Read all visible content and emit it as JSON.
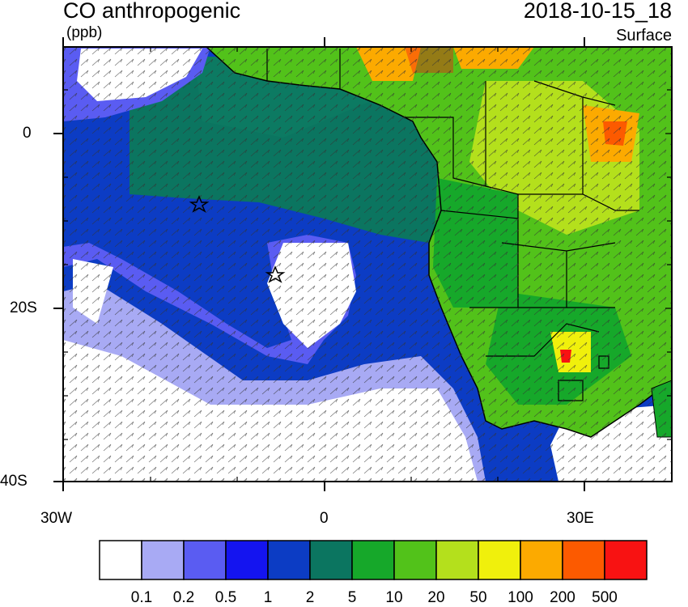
{
  "header": {
    "title": "CO anthropogenic",
    "units": "(ppb)",
    "timestamp": "2018-10-15_18",
    "level": "Surface"
  },
  "axes": {
    "lat_labels": [
      "0",
      "20S",
      "40S"
    ],
    "lon_labels": [
      "30W",
      "0",
      "30E"
    ]
  },
  "colorbar": {
    "colors": [
      "#ffffff",
      "#a8aaf4",
      "#5a5cf2",
      "#1414f0",
      "#0c3cc4",
      "#0b7560",
      "#16a82a",
      "#52c21a",
      "#b4e01c",
      "#f0f00c",
      "#fcaa00",
      "#fc5a00",
      "#f81212"
    ],
    "labels": [
      "0.1",
      "0.2",
      "0.5",
      "1",
      "2",
      "5",
      "10",
      "20",
      "50",
      "100",
      "200",
      "500"
    ]
  },
  "map": {
    "region": "West/Southern Africa and South Atlantic",
    "markers": [
      "star-marker",
      "star-marker"
    ]
  }
}
